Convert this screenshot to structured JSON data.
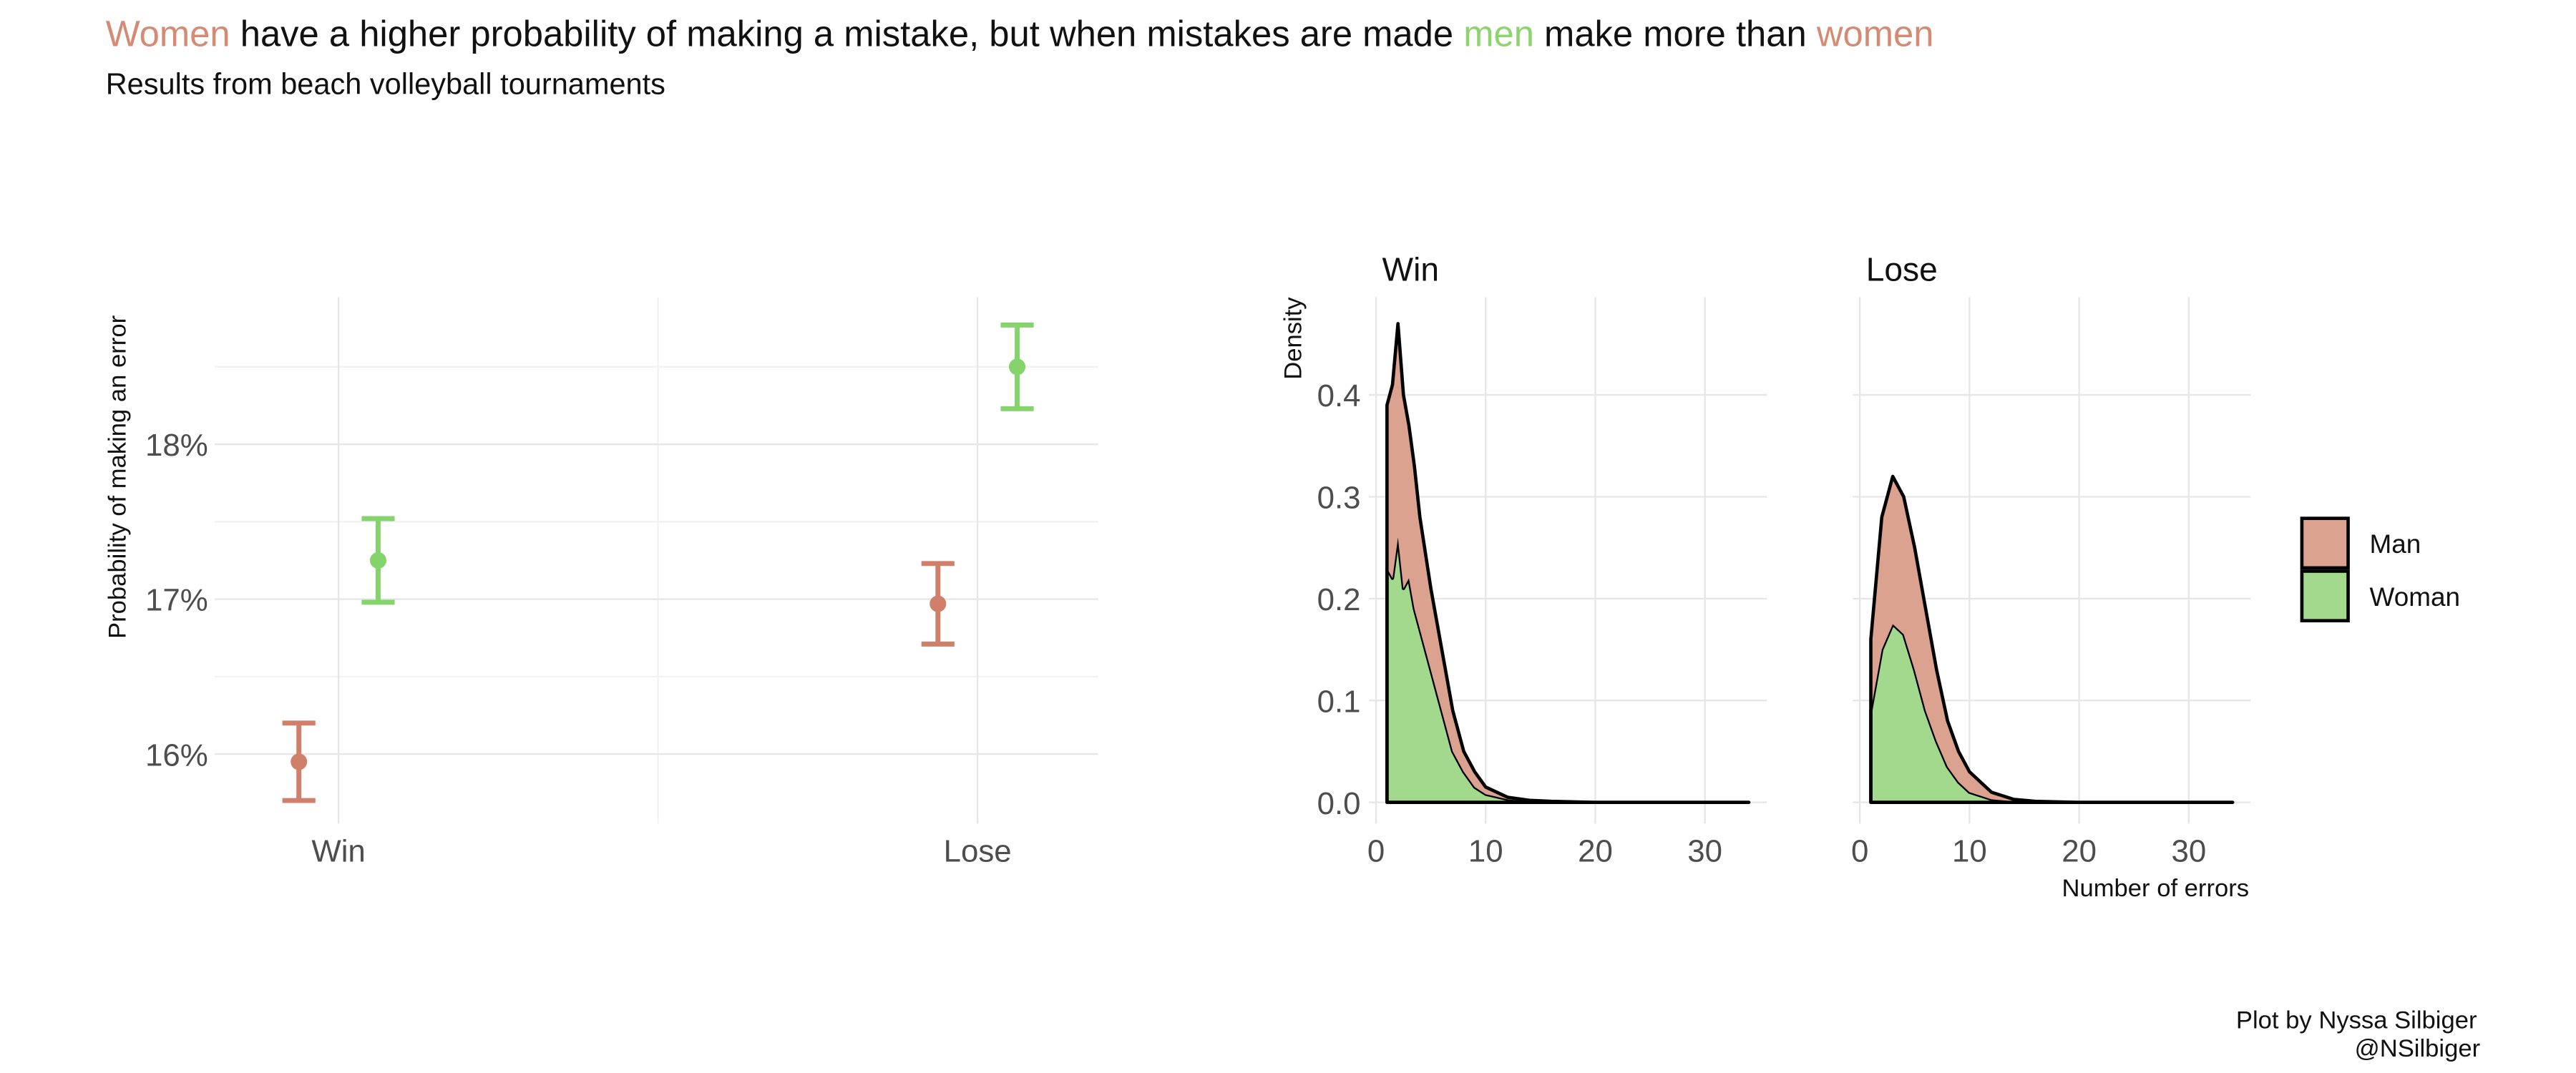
{
  "header": {
    "title_parts": [
      {
        "text": "Women",
        "color": "#d58a74"
      },
      {
        "text": " have a higher probability of making a mistake, but when mistakes are made ",
        "color": "#111111"
      },
      {
        "text": "men",
        "color": "#8dd46f"
      },
      {
        "text": " make more than ",
        "color": "#111111"
      },
      {
        "text": "women",
        "color": "#d58a74"
      }
    ],
    "subtitle": "Results from beach volleyball tournaments"
  },
  "chart_data": [
    {
      "type": "errorbar",
      "y_label": "Probability of making an error",
      "categories": [
        "Win",
        "Lose"
      ],
      "series": [
        {
          "color": "#cf7f6a",
          "values": [
            15.95,
            16.97
          ],
          "errors": [
            0.25,
            0.26
          ]
        },
        {
          "color": "#84d36b",
          "values": [
            17.25,
            18.5
          ],
          "errors": [
            0.27,
            0.27
          ]
        }
      ],
      "ylim": [
        15.55,
        18.95
      ],
      "yticks": [
        {
          "value": 16,
          "label": "16%"
        },
        {
          "value": 17,
          "label": "17%"
        },
        {
          "value": 18,
          "label": "18%"
        }
      ],
      "y_minor_ticks": [
        16.5,
        17.5,
        18.5
      ],
      "grid": true
    },
    {
      "type": "stacked_density",
      "y_label": "Density",
      "x_label": "Number of errors",
      "series": [
        {
          "name": "Man",
          "color": "#dba290",
          "values": [
            [
              0.16,
              0.19,
              0.21,
              0.19,
              0.15,
              0.14,
              0.11,
              0.08,
              0.06,
              0.04,
              0.02,
              0.015,
              0.007,
              0.002,
              0.001,
              0.001,
              0,
              0,
              0,
              0
            ],
            [
              0.07,
              0.13,
              0.145,
              0.135,
              0.12,
              0.1,
              0.07,
              0.045,
              0.03,
              0.02,
              0.007,
              0.002,
              0.001,
              0,
              0,
              0,
              0
            ]
          ]
        },
        {
          "name": "Woman",
          "color": "#a3d98d",
          "values": [
            [
              0.23,
              0.22,
              0.26,
              0.21,
              0.22,
              0.19,
              0.17,
              0.13,
              0.09,
              0.05,
              0.03,
              0.015,
              0.008,
              0.003,
              0.001,
              0,
              0,
              0,
              0,
              0
            ],
            [
              0.09,
              0.15,
              0.175,
              0.165,
              0.13,
              0.09,
              0.06,
              0.035,
              0.02,
              0.01,
              0.003,
              0.001,
              0,
              0,
              0,
              0,
              0
            ]
          ]
        }
      ],
      "facets": [
        {
          "title": "Win",
          "x": [
            1,
            1.5,
            2,
            2.5,
            3,
            3.5,
            4,
            5,
            6,
            7,
            8,
            9,
            10,
            12,
            14,
            16,
            20,
            25,
            30,
            34
          ]
        },
        {
          "title": "Lose",
          "x": [
            1,
            2,
            3,
            4,
            5,
            6,
            7,
            8,
            9,
            10,
            12,
            14,
            16,
            20,
            25,
            30,
            34
          ]
        }
      ],
      "xlim": [
        -0.65,
        35.65
      ],
      "xticks": [
        0,
        10,
        20,
        30
      ],
      "ylim": [
        -0.021,
        0.496
      ],
      "yticks": [
        {
          "value": 0,
          "label": "0.0"
        },
        0.1,
        0.2,
        0.3,
        0.4
      ],
      "grid": true,
      "legend": "right"
    }
  ],
  "caption": [
    "Plot by Nyssa Silbiger",
    "@NSilbiger"
  ]
}
